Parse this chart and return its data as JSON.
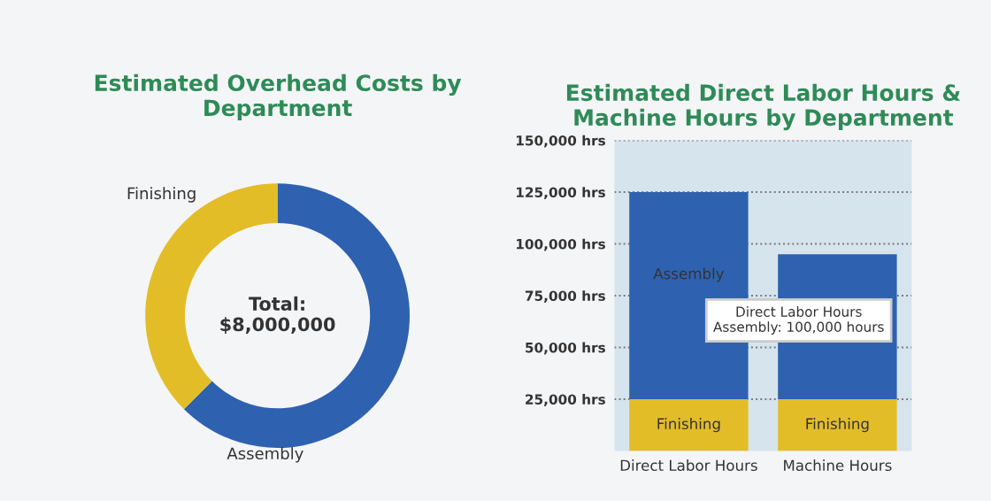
{
  "chart_data": [
    {
      "type": "donut",
      "title": "Estimated Overhead Costs by\nDepartment",
      "categories": [
        "Assembly",
        "Finishing"
      ],
      "values": [
        62.5,
        37.5
      ],
      "colors": [
        "#2e62b0",
        "#e3bd28"
      ],
      "annotations": [
        "Total:\n$8,000,000"
      ]
    },
    {
      "type": "bar",
      "title": "Estimated Direct Labor Hours &\nMachine Hours by Department",
      "categories": [
        "Direct Labor Hours",
        "Machine Hours"
      ],
      "stacked": true,
      "series": [
        {
          "name": "Finishing",
          "color": "#e3bd28",
          "values": [
            25000,
            25000
          ]
        },
        {
          "name": "Assembly",
          "color": "#2e62b0",
          "values": [
            100000,
            70000
          ]
        }
      ],
      "ylim": [
        0,
        150000
      ],
      "yticks": [
        {
          "value": 25000,
          "label": "25,000 hrs"
        },
        {
          "value": 50000,
          "label": "50,000 hrs"
        },
        {
          "value": 75000,
          "label": "75,000 hrs"
        },
        {
          "value": 100000,
          "label": "100,000 hrs"
        },
        {
          "value": 125000,
          "label": "125,000 hrs"
        },
        {
          "value": 150000,
          "label": "150,000 hrs"
        }
      ],
      "grid": "y",
      "annotations": [
        "Direct Labor Hours\nAssembly: 100,000 hours"
      ]
    }
  ]
}
